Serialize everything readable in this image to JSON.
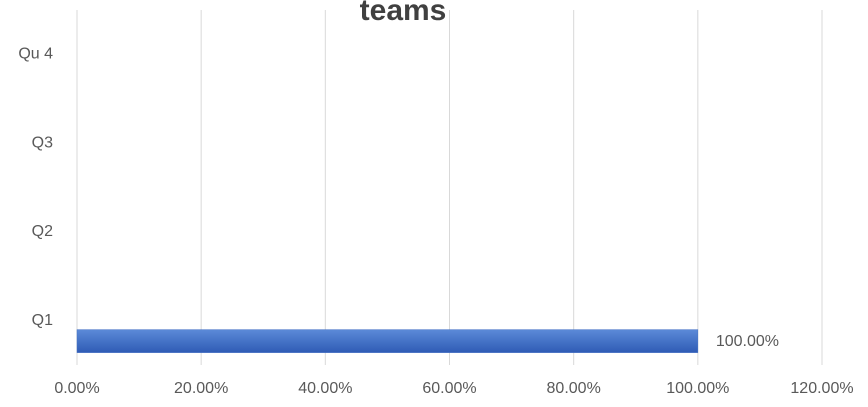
{
  "chart_data": {
    "type": "barh",
    "title": "teams",
    "categories": [
      "Q1",
      "Q2",
      "Q3",
      "Qu 4"
    ],
    "values": [
      100,
      null,
      null,
      null
    ],
    "value_labels": [
      "100.00%",
      null,
      null,
      null
    ],
    "color": "#4472c4",
    "xlim": [
      0,
      120
    ],
    "xticks": [
      {
        "value": 0,
        "label": "0.00%"
      },
      {
        "value": 20,
        "label": "20.00%"
      },
      {
        "value": 40,
        "label": "40.00%"
      },
      {
        "value": 60,
        "label": "60.00%"
      },
      {
        "value": 80,
        "label": "80.00%"
      },
      {
        "value": 100,
        "label": "100.00%"
      },
      {
        "value": 120,
        "label": "120.00%"
      }
    ],
    "grid": true
  }
}
